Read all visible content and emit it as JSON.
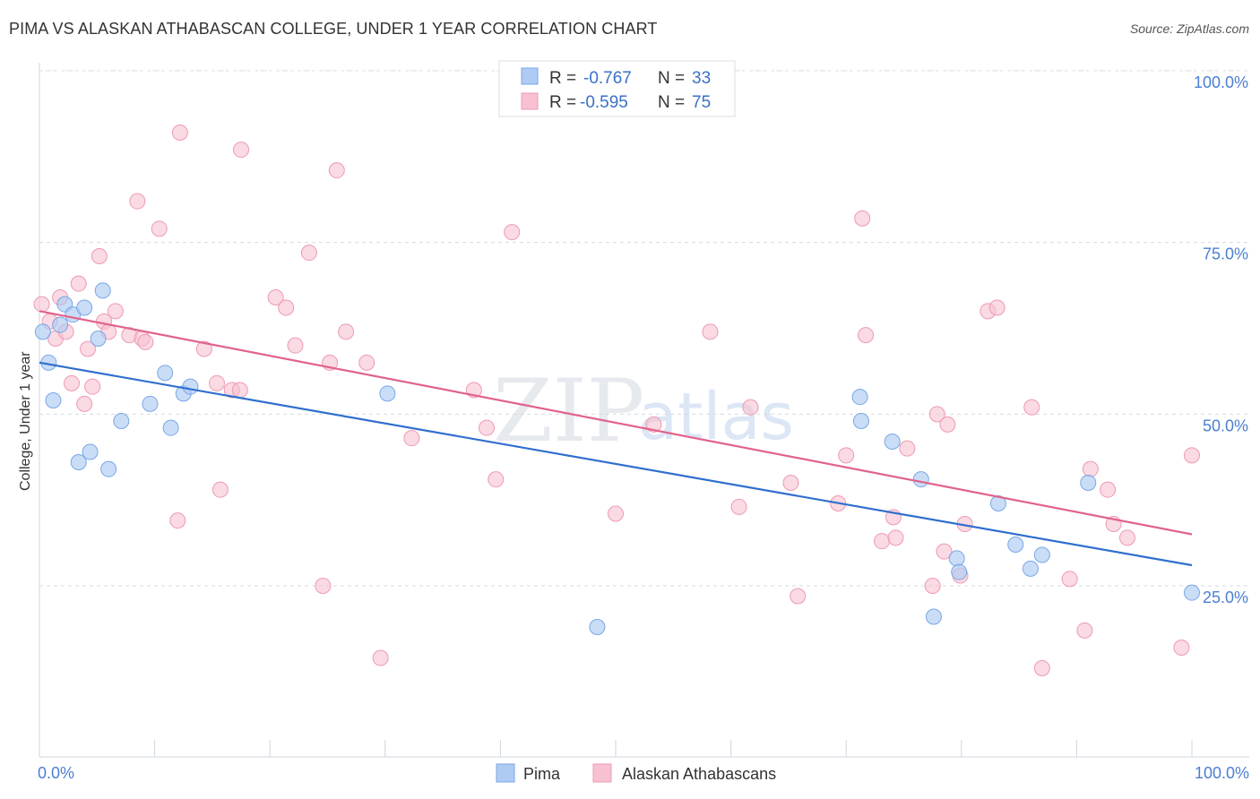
{
  "header": {
    "title": "PIMA VS ALASKAN ATHABASCAN COLLEGE, UNDER 1 YEAR CORRELATION CHART",
    "source": "Source: ZipAtlas.com"
  },
  "legend": {
    "pima": {
      "r_label": "R =",
      "r_value": "-0.767",
      "n_label": "N =",
      "n_value": "33"
    },
    "alaskan": {
      "r_label": "R =",
      "r_value": "-0.595",
      "n_label": "N =",
      "n_value": "75"
    }
  },
  "colors": {
    "pima_fill": "#aecbf3",
    "pima_stroke": "#7aa7e6",
    "pima_line": "#2f6fce",
    "alaskan_fill": "#f7c1d1",
    "alaskan_stroke": "#ee9ab3",
    "alaskan_line": "#e0638c"
  },
  "watermark": {
    "zip": "ZIP",
    "atlas": "atlas"
  },
  "chart_data": {
    "type": "scatter",
    "title": "PIMA VS ALASKAN ATHABASCAN COLLEGE, UNDER 1 YEAR CORRELATION CHART",
    "xlabel": "",
    "ylabel": "College, Under 1 year",
    "xlim": [
      0,
      100
    ],
    "ylim": [
      0,
      103
    ],
    "x_tick_labels": [
      "0.0%",
      "100.0%"
    ],
    "y_ticks": [
      25,
      50,
      75,
      100
    ],
    "y_tick_labels": [
      "25.0%",
      "50.0%",
      "75.0%",
      "100.0%"
    ],
    "grid": true,
    "legend_position": "top-center",
    "series": [
      {
        "name": "Pima",
        "r": -0.767,
        "n": 33,
        "trend": {
          "x": [
            0,
            100
          ],
          "y": [
            57.5,
            28.0
          ]
        },
        "points": [
          [
            0.3,
            62.0
          ],
          [
            0.8,
            57.5
          ],
          [
            1.2,
            52.0
          ],
          [
            1.8,
            63.0
          ],
          [
            2.2,
            66.0
          ],
          [
            2.9,
            64.5
          ],
          [
            3.4,
            43.0
          ],
          [
            3.9,
            65.5
          ],
          [
            4.4,
            44.5
          ],
          [
            5.1,
            61.0
          ],
          [
            5.5,
            68.0
          ],
          [
            6.0,
            42.0
          ],
          [
            7.1,
            49.0
          ],
          [
            9.6,
            51.5
          ],
          [
            10.9,
            56.0
          ],
          [
            11.4,
            48.0
          ],
          [
            12.5,
            53.0
          ],
          [
            13.1,
            54.0
          ],
          [
            30.2,
            53.0
          ],
          [
            48.4,
            19.0
          ],
          [
            71.2,
            52.5
          ],
          [
            71.3,
            49.0
          ],
          [
            74.0,
            46.0
          ],
          [
            76.5,
            40.5
          ],
          [
            77.6,
            20.5
          ],
          [
            79.6,
            29.0
          ],
          [
            79.8,
            27.0
          ],
          [
            83.2,
            37.0
          ],
          [
            84.7,
            31.0
          ],
          [
            86.0,
            27.5
          ],
          [
            87.0,
            29.5
          ],
          [
            91.0,
            40.0
          ],
          [
            100.0,
            24.0
          ]
        ]
      },
      {
        "name": "Alaskan Athabascans",
        "r": -0.595,
        "n": 75,
        "trend": {
          "x": [
            0,
            100
          ],
          "y": [
            65.0,
            32.5
          ]
        },
        "points": [
          [
            0.2,
            66.0
          ],
          [
            0.9,
            63.5
          ],
          [
            1.4,
            61.0
          ],
          [
            1.8,
            67.0
          ],
          [
            2.3,
            62.0
          ],
          [
            2.8,
            54.5
          ],
          [
            3.4,
            69.0
          ],
          [
            3.9,
            51.5
          ],
          [
            4.2,
            59.5
          ],
          [
            4.6,
            54.0
          ],
          [
            5.2,
            73.0
          ],
          [
            5.6,
            63.5
          ],
          [
            6.0,
            62.0
          ],
          [
            6.6,
            65.0
          ],
          [
            7.8,
            61.5
          ],
          [
            8.5,
            81.0
          ],
          [
            8.9,
            61.0
          ],
          [
            9.2,
            60.5
          ],
          [
            10.4,
            77.0
          ],
          [
            12.0,
            34.5
          ],
          [
            12.2,
            91.0
          ],
          [
            14.3,
            59.5
          ],
          [
            15.4,
            54.5
          ],
          [
            15.7,
            39.0
          ],
          [
            16.7,
            53.5
          ],
          [
            17.4,
            53.5
          ],
          [
            17.5,
            88.5
          ],
          [
            20.5,
            67.0
          ],
          [
            21.4,
            65.5
          ],
          [
            22.2,
            60.0
          ],
          [
            23.4,
            73.5
          ],
          [
            24.6,
            25.0
          ],
          [
            25.2,
            57.5
          ],
          [
            25.8,
            85.5
          ],
          [
            26.6,
            62.0
          ],
          [
            28.4,
            57.5
          ],
          [
            29.6,
            14.5
          ],
          [
            32.3,
            46.5
          ],
          [
            37.7,
            53.5
          ],
          [
            38.8,
            48.0
          ],
          [
            39.6,
            40.5
          ],
          [
            41.0,
            76.5
          ],
          [
            50.0,
            35.5
          ],
          [
            53.3,
            48.5
          ],
          [
            58.2,
            62.0
          ],
          [
            60.7,
            36.5
          ],
          [
            61.7,
            51.0
          ],
          [
            65.2,
            40.0
          ],
          [
            65.8,
            23.5
          ],
          [
            69.3,
            37.0
          ],
          [
            70.0,
            44.0
          ],
          [
            71.4,
            78.5
          ],
          [
            71.7,
            61.5
          ],
          [
            73.1,
            31.5
          ],
          [
            74.1,
            35.0
          ],
          [
            74.3,
            32.0
          ],
          [
            75.3,
            45.0
          ],
          [
            77.5,
            25.0
          ],
          [
            77.9,
            50.0
          ],
          [
            78.5,
            30.0
          ],
          [
            78.8,
            48.5
          ],
          [
            79.9,
            26.5
          ],
          [
            80.3,
            34.0
          ],
          [
            82.3,
            65.0
          ],
          [
            83.1,
            65.5
          ],
          [
            86.1,
            51.0
          ],
          [
            87.0,
            13.0
          ],
          [
            89.4,
            26.0
          ],
          [
            90.7,
            18.5
          ],
          [
            91.2,
            42.0
          ],
          [
            92.7,
            39.0
          ],
          [
            93.2,
            34.0
          ],
          [
            94.4,
            32.0
          ],
          [
            99.1,
            16.0
          ],
          [
            100.0,
            44.0
          ]
        ]
      }
    ]
  },
  "bottom_legend": {
    "pima": "Pima",
    "alaskan": "Alaskan Athabascans"
  }
}
